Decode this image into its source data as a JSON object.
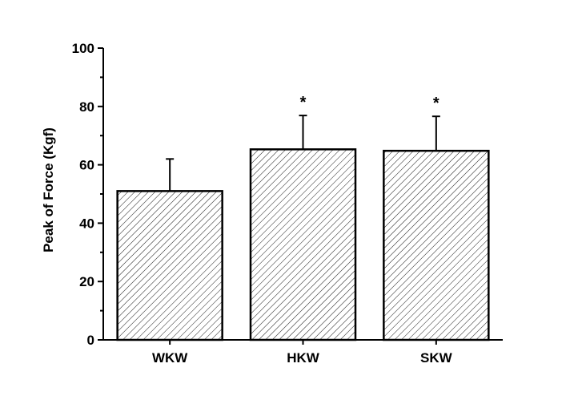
{
  "chart_data": {
    "type": "bar",
    "title": "",
    "xlabel": "",
    "ylabel": "Peak of Force (Kgf)",
    "ylim": [
      0,
      100
    ],
    "yticks": [
      0,
      20,
      40,
      60,
      80,
      100
    ],
    "grid": false,
    "categories": [
      "WKW",
      "HKW",
      "SKW"
    ],
    "values": [
      51,
      65.3,
      64.8
    ],
    "error_upper": [
      11,
      11.6,
      11.8
    ],
    "significance": [
      "",
      "*",
      "*"
    ],
    "bar_fill": "diagonal-hatch",
    "colors": {
      "bar_stroke": "#000000",
      "hatch": "#000000",
      "background": "#ffffff"
    }
  }
}
